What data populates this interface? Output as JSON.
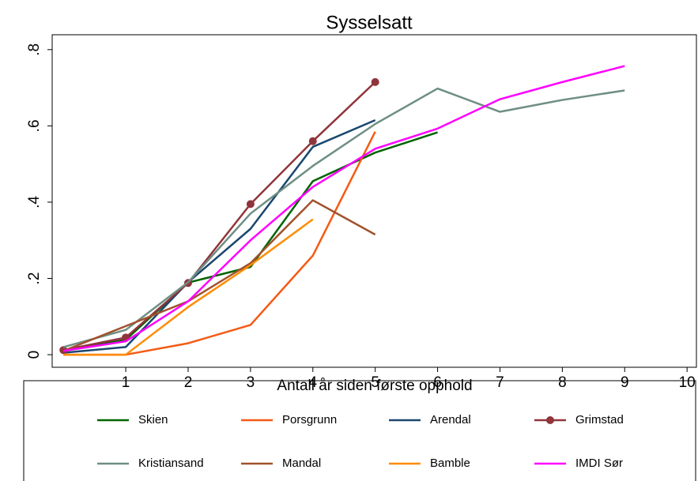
{
  "chart_data": {
    "type": "line",
    "title": "Sysselsatt",
    "x_label": "Antall år siden første opphold",
    "x": [
      0,
      1,
      2,
      3,
      4,
      5,
      6,
      7,
      8,
      9
    ],
    "xlim": [
      -0.18,
      10.15
    ],
    "xticks": [
      1,
      2,
      3,
      4,
      5,
      6,
      7,
      8,
      9,
      10
    ],
    "ylim": [
      -0.033,
      0.839
    ],
    "yticks": [
      0,
      {
        "value": 0.2,
        "label": ".2"
      },
      {
        "value": 0.4,
        "label": ".4"
      },
      {
        "value": 0.6,
        "label": ".6"
      },
      {
        "value": 0.8,
        "label": ".8"
      }
    ],
    "series": [
      {
        "name": "Skien",
        "color": "#006400",
        "values": [
          0.01,
          0.039,
          0.189,
          0.23,
          0.455,
          0.53,
          0.583,
          null,
          null,
          null
        ]
      },
      {
        "name": "Porsgrunn",
        "color": "#f55a14",
        "values": [
          0,
          0,
          0.03,
          0.078,
          0.26,
          0.585,
          null,
          null,
          null,
          null
        ]
      },
      {
        "name": "Arendal",
        "color": "#1a476f",
        "values": [
          0.005,
          0.02,
          0.19,
          0.33,
          0.545,
          0.615,
          null,
          null,
          null,
          null
        ]
      },
      {
        "name": "Grimstad",
        "color": "#90353b",
        "marker": true,
        "values": [
          0.012,
          0.045,
          0.188,
          0.395,
          0.56,
          0.715,
          null,
          null,
          null,
          null
        ]
      },
      {
        "name": "Kristiansand",
        "color": "#6e8e84",
        "values": [
          0.02,
          0.065,
          0.19,
          0.37,
          0.495,
          0.605,
          0.698,
          0.637,
          0.668,
          0.693
        ]
      },
      {
        "name": "Mandal",
        "color": "#a0522d",
        "values": [
          0.01,
          0.075,
          0.14,
          0.24,
          0.405,
          0.315,
          null,
          null,
          null,
          null
        ]
      },
      {
        "name": "Bamble",
        "color": "#ff8c00",
        "values": [
          0,
          0,
          0.125,
          0.235,
          0.355,
          null,
          null,
          null,
          null,
          null
        ]
      },
      {
        "name": "IMDI Sør",
        "color": "#ff00ff",
        "values": [
          0.01,
          0.035,
          0.14,
          0.3,
          0.44,
          0.54,
          0.593,
          0.67,
          0.715,
          0.757
        ]
      }
    ]
  }
}
